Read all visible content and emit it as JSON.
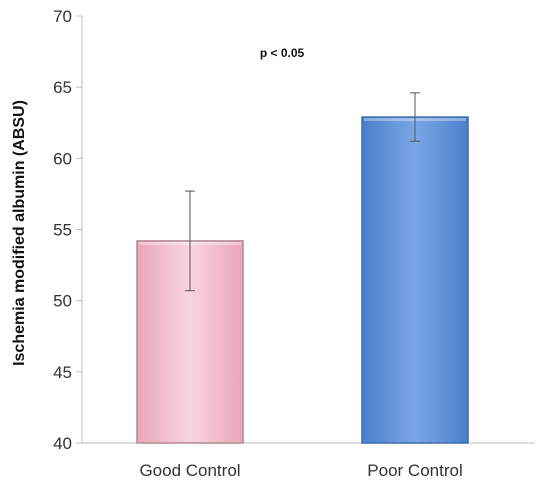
{
  "chart_data": {
    "type": "bar",
    "title": "",
    "xlabel": "",
    "ylabel": "Ischemia modified albumin (ABSU)",
    "ylim": [
      40,
      70
    ],
    "yticks": [
      40,
      45,
      50,
      55,
      60,
      65,
      70
    ],
    "categories": [
      "Good Control",
      "Poor Control"
    ],
    "values": [
      54.2,
      62.9
    ],
    "error_low": [
      50.7,
      61.2
    ],
    "error_high": [
      57.7,
      64.6
    ],
    "bar_colors": [
      "#f4b6c8",
      "#5b8fd6"
    ],
    "bar_edge_colors": [
      "#b08a92",
      "#3d6bb0"
    ],
    "annotation": "p < 0.05",
    "grid": false
  }
}
